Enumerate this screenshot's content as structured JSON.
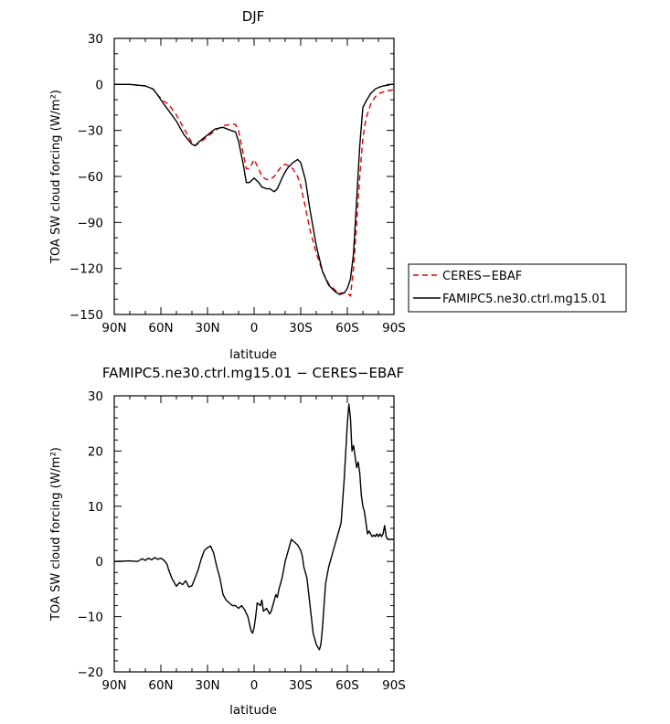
{
  "chart_data": [
    {
      "type": "line",
      "title": "DJF",
      "xlabel": "latitude",
      "ylabel": "TOA SW cloud forcing (W/m²)",
      "xlim": [
        90,
        -90
      ],
      "ylim": [
        -150,
        30
      ],
      "xticks": [
        {
          "value": 90,
          "label": "90N"
        },
        {
          "value": 60,
          "label": "60N"
        },
        {
          "value": 30,
          "label": "30N"
        },
        {
          "value": 0,
          "label": "0"
        },
        {
          "value": -30,
          "label": "30S"
        },
        {
          "value": -60,
          "label": "60S"
        },
        {
          "value": -90,
          "label": "90S"
        }
      ],
      "yticks": [
        {
          "value": 30,
          "label": "30"
        },
        {
          "value": 0,
          "label": "0"
        },
        {
          "value": -30,
          "label": "−30"
        },
        {
          "value": -60,
          "label": "−60"
        },
        {
          "value": -90,
          "label": "−90"
        },
        {
          "value": -120,
          "label": "−120"
        },
        {
          "value": -150,
          "label": "−150"
        }
      ],
      "legend": {
        "placement": "right"
      },
      "series": [
        {
          "name": "CERES−EBAF",
          "color": "#dd0000",
          "dash": true,
          "x": [
            90,
            80,
            70,
            65,
            62,
            58,
            55,
            50,
            45,
            40,
            38,
            35,
            30,
            25,
            20,
            15,
            12,
            10,
            7,
            5,
            3,
            0,
            -3,
            -5,
            -8,
            -10,
            -13,
            -15,
            -18,
            -20,
            -22,
            -25,
            -28,
            -30,
            -33,
            -36,
            -40,
            -44,
            -48,
            -52,
            -55,
            -58,
            -60,
            -62,
            -64,
            -66,
            -68,
            -70,
            -72,
            -75,
            -78,
            -80,
            -83,
            -86,
            -88,
            -90
          ],
          "y": [
            0,
            0,
            -1,
            -3,
            -7,
            -11,
            -13,
            -20,
            -29,
            -38,
            -40,
            -38,
            -34,
            -30,
            -27,
            -26,
            -26,
            -30,
            -45,
            -55,
            -55,
            -49,
            -55,
            -60,
            -62,
            -62,
            -60,
            -57,
            -53,
            -52,
            -53,
            -55,
            -60,
            -66,
            -80,
            -95,
            -110,
            -122,
            -130,
            -134,
            -136,
            -136,
            -136,
            -138,
            -120,
            -90,
            -60,
            -35,
            -22,
            -13,
            -8,
            -6,
            -5,
            -4,
            -4,
            -3
          ]
        },
        {
          "name": "FAMIPC5.ne30.ctrl.mg15.01",
          "color": "#000000",
          "dash": false,
          "x": [
            90,
            80,
            70,
            65,
            62,
            58,
            55,
            50,
            45,
            40,
            38,
            35,
            30,
            25,
            20,
            15,
            12,
            10,
            7,
            5,
            3,
            0,
            -3,
            -5,
            -8,
            -10,
            -13,
            -15,
            -18,
            -20,
            -22,
            -25,
            -28,
            -30,
            -33,
            -36,
            -40,
            -44,
            -48,
            -52,
            -55,
            -58,
            -60,
            -62,
            -64,
            -66,
            -68,
            -70,
            -72,
            -75,
            -78,
            -80,
            -83,
            -86,
            -88,
            -90
          ],
          "y": [
            0,
            0,
            -1,
            -3,
            -7,
            -13,
            -17,
            -24,
            -33,
            -39,
            -40,
            -37,
            -33,
            -29,
            -28,
            -30,
            -31,
            -37,
            -52,
            -64,
            -64,
            -61,
            -64,
            -67,
            -68,
            -68,
            -70,
            -68,
            -61,
            -57,
            -54,
            -51,
            -49,
            -51,
            -62,
            -82,
            -105,
            -122,
            -131,
            -135,
            -137,
            -136,
            -133,
            -127,
            -110,
            -75,
            -40,
            -15,
            -11,
            -6,
            -3,
            -2,
            -1,
            -0.5,
            0,
            0
          ]
        }
      ]
    },
    {
      "type": "line",
      "title": "FAMIPC5.ne30.ctrl.mg15.01 − CERES−EBAF",
      "xlabel": "latitude",
      "ylabel": "TOA SW cloud forcing (W/m²)",
      "xlim": [
        90,
        -90
      ],
      "ylim": [
        -20,
        30
      ],
      "xticks": [
        {
          "value": 90,
          "label": "90N"
        },
        {
          "value": 60,
          "label": "60N"
        },
        {
          "value": 30,
          "label": "30N"
        },
        {
          "value": 0,
          "label": "0"
        },
        {
          "value": -30,
          "label": "30S"
        },
        {
          "value": -60,
          "label": "60S"
        },
        {
          "value": -90,
          "label": "90S"
        }
      ],
      "yticks": [
        {
          "value": 30,
          "label": "30"
        },
        {
          "value": 20,
          "label": "20"
        },
        {
          "value": 10,
          "label": "10"
        },
        {
          "value": 0,
          "label": "0"
        },
        {
          "value": -10,
          "label": "−10"
        },
        {
          "value": -20,
          "label": "−20"
        }
      ],
      "series": [
        {
          "color": "#000000",
          "dash": false,
          "x": [
            90,
            80,
            75,
            72,
            70,
            68,
            66,
            64,
            62,
            60,
            58,
            56,
            55,
            53,
            51,
            50,
            48,
            46,
            44,
            42,
            40,
            38,
            36,
            34,
            32,
            30,
            28,
            26,
            24,
            22,
            20,
            18,
            16,
            14,
            12,
            10,
            8,
            6,
            4,
            2,
            1,
            0,
            -1,
            -2,
            -4,
            -5,
            -6,
            -8,
            -10,
            -11,
            -12,
            -14,
            -15,
            -16,
            -18,
            -20,
            -22,
            -24,
            -26,
            -28,
            -30,
            -31,
            -32,
            -34,
            -36,
            -38,
            -40,
            -42,
            -43,
            -44,
            -45,
            -46,
            -48,
            -50,
            -52,
            -54,
            -56,
            -58,
            -60,
            -61,
            -62,
            -63,
            -64,
            -65,
            -66,
            -67,
            -68,
            -69,
            -70,
            -71,
            -72,
            -73,
            -74,
            -75,
            -76,
            -77,
            -78,
            -79,
            -80,
            -81,
            -82,
            -83,
            -84,
            -85,
            -86,
            -87,
            -88,
            -89,
            -90
          ],
          "y": [
            0,
            0.1,
            0,
            0.5,
            0.2,
            0.6,
            0.3,
            0.7,
            0.4,
            0.6,
            0.2,
            -0.5,
            -1.5,
            -3,
            -4,
            -4.5,
            -3.8,
            -4.2,
            -3.5,
            -4.6,
            -4.4,
            -3,
            -1.5,
            0.5,
            2,
            2.5,
            2.8,
            1.5,
            -1,
            -3,
            -6,
            -7,
            -7.5,
            -8,
            -8,
            -8.5,
            -8,
            -8.8,
            -10,
            -12.5,
            -13,
            -12,
            -10,
            -7.5,
            -8,
            -7,
            -9,
            -8.5,
            -9.5,
            -9,
            -8,
            -6,
            -6.5,
            -5,
            -3,
            0,
            2,
            4,
            3.5,
            3,
            2,
            1,
            -1,
            -3,
            -8,
            -13,
            -15,
            -16,
            -15,
            -12,
            -8,
            -4,
            -1,
            1,
            3,
            5,
            7,
            15,
            25,
            28.5,
            26,
            20,
            21,
            19,
            17,
            18,
            16,
            12,
            10,
            9,
            7,
            5,
            5.5,
            5,
            4.5,
            4.8,
            4.5,
            5,
            4.5,
            5,
            4.5,
            5,
            6.5,
            4.5,
            4,
            4,
            4,
            4,
            4
          ]
        }
      ]
    }
  ]
}
